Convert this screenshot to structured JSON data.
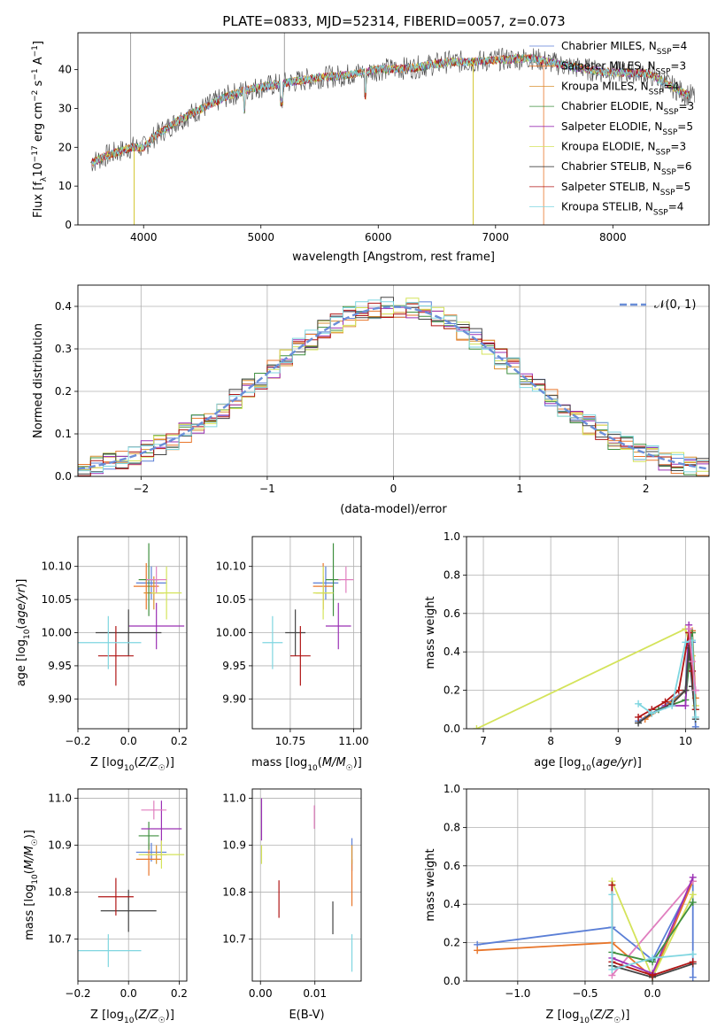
{
  "figure_title": "PLATE=0833, MJD=52314, FIBERID=0057, z=0.073",
  "colors": {
    "Chabrier MILES": "#5b7fd6",
    "Salpeter MILES": "#e8762b",
    "Kroupa MILES": "#d99030",
    "Chabrier ELODIE": "#3f8f3f",
    "Salpeter ELODIE": "#9b30b5",
    "Kroupa ELODIE": "#d4e35a",
    "Chabrier STELIB": "#444444",
    "Salpeter STELIB": "#b01515",
    "Kroupa STELIB": "#7fd6e0",
    "pink": "#e07fbf"
  },
  "legend": [
    {
      "model": "Chabrier MILES",
      "n": "4"
    },
    {
      "model": "Salpeter MILES",
      "n": "3"
    },
    {
      "model": "Kroupa MILES",
      "n": "4"
    },
    {
      "model": "Chabrier ELODIE",
      "n": "3"
    },
    {
      "model": "Salpeter ELODIE",
      "n": "5"
    },
    {
      "model": "Kroupa ELODIE",
      "n": "3"
    },
    {
      "model": "Chabrier STELIB",
      "n": "6"
    },
    {
      "model": "Salpeter STELIB",
      "n": "5"
    },
    {
      "model": "Kroupa STELIB",
      "n": "4"
    }
  ],
  "normal_legend": "𝒩(0, 1)",
  "chart_data": [
    {
      "id": "spectrum",
      "type": "line",
      "xlabel": "wavelength [Angstrom, rest frame]",
      "ylabel": "Flux [f_λ 10^-17 erg cm^-2 s^-1 A^-1]",
      "xlim": [
        3440,
        8820
      ],
      "ylim": [
        0,
        49.5
      ],
      "xticks": [
        4000,
        5000,
        6000,
        7000,
        8000
      ],
      "yticks": [
        0,
        10,
        20,
        30,
        40
      ],
      "continuum": [
        [
          3550,
          16
        ],
        [
          3700,
          18
        ],
        [
          3900,
          20
        ],
        [
          4000,
          20
        ],
        [
          4100,
          23
        ],
        [
          4300,
          27
        ],
        [
          4500,
          30
        ],
        [
          4700,
          33
        ],
        [
          4900,
          35
        ],
        [
          5100,
          36
        ],
        [
          5300,
          37
        ],
        [
          5500,
          38
        ],
        [
          5700,
          38.5
        ],
        [
          6000,
          40
        ],
        [
          6300,
          40.5
        ],
        [
          6600,
          42
        ],
        [
          6800,
          42
        ],
        [
          7000,
          42.5
        ],
        [
          7300,
          43
        ],
        [
          7600,
          41
        ],
        [
          7900,
          39.5
        ],
        [
          8300,
          39
        ],
        [
          8600,
          34
        ],
        [
          8700,
          33
        ]
      ]
    },
    {
      "id": "residuals",
      "type": "step",
      "xlabel": "(data-model)/error",
      "ylabel": "Normed distribution",
      "xlim": [
        -2.5,
        2.5
      ],
      "ylim": [
        0,
        0.45
      ],
      "xticks": [
        -2,
        -1,
        0,
        1,
        2
      ],
      "yticks": [
        0.0,
        0.1,
        0.2,
        0.3,
        0.4
      ],
      "bin_width": 0.1,
      "reference": "normal(0,1)"
    },
    {
      "id": "age-vs-Z",
      "type": "errorbar",
      "xlabel": "Z [log10(Z/Z☉)]",
      "ylabel": "age [log10(age/yr)]",
      "xlim": [
        -0.2,
        0.23
      ],
      "ylim": [
        9.855,
        10.145
      ],
      "xticks": [
        -0.2,
        0.0,
        0.2
      ],
      "yticks": [
        9.9,
        9.95,
        10.0,
        10.05,
        10.1
      ],
      "points": [
        {
          "c": "Chabrier MILES",
          "x": 0.09,
          "xerr": 0.06,
          "y": 10.075,
          "yerr": 0.025
        },
        {
          "c": "Salpeter MILES",
          "x": 0.07,
          "xerr": 0.05,
          "y": 10.07,
          "yerr": 0.035
        },
        {
          "c": "Kroupa MILES",
          "x": 0.1,
          "xerr": 0.04,
          "y": 10.06,
          "yerr": 0.025
        },
        {
          "c": "Chabrier ELODIE",
          "x": 0.08,
          "xerr": 0.04,
          "y": 10.08,
          "yerr": 0.055
        },
        {
          "c": "Salpeter ELODIE",
          "x": 0.11,
          "xerr": 0.11,
          "y": 10.01,
          "yerr": 0.035
        },
        {
          "c": "Kroupa ELODIE",
          "x": 0.15,
          "xerr": 0.06,
          "y": 10.06,
          "yerr": 0.04
        },
        {
          "c": "Chabrier STELIB",
          "x": 0.0,
          "xerr": 0.13,
          "y": 10.0,
          "yerr": 0.035
        },
        {
          "c": "Salpeter STELIB",
          "x": -0.05,
          "xerr": 0.07,
          "y": 9.965,
          "yerr": 0.045
        },
        {
          "c": "Kroupa STELIB",
          "x": -0.08,
          "xerr": 0.13,
          "y": 9.985,
          "yerr": 0.04
        },
        {
          "c": "pink",
          "x": 0.11,
          "xerr": 0.04,
          "y": 10.08,
          "yerr": 0.02
        }
      ]
    },
    {
      "id": "age-vs-mass",
      "type": "errorbar",
      "xlabel": "mass [log10(M/M☉)]",
      "ylabel": "",
      "xlim": [
        10.6,
        11.03
      ],
      "ylim": [
        9.855,
        10.145
      ],
      "xticks": [
        10.75,
        11.0
      ],
      "yticks": [
        9.9,
        9.95,
        10.0,
        10.05,
        10.1
      ],
      "points": [
        {
          "c": "Chabrier MILES",
          "x": 10.89,
          "xerr": 0.05,
          "y": 10.075,
          "yerr": 0.025
        },
        {
          "c": "Salpeter MILES",
          "x": 10.88,
          "xerr": 0.04,
          "y": 10.07,
          "yerr": 0.035
        },
        {
          "c": "Kroupa MILES",
          "x": 10.88,
          "xerr": 0.03,
          "y": 10.06,
          "yerr": 0.025
        },
        {
          "c": "Chabrier ELODIE",
          "x": 10.92,
          "xerr": 0.03,
          "y": 10.08,
          "yerr": 0.055
        },
        {
          "c": "Salpeter ELODIE",
          "x": 10.94,
          "xerr": 0.05,
          "y": 10.01,
          "yerr": 0.035
        },
        {
          "c": "Kroupa ELODIE",
          "x": 10.88,
          "xerr": 0.04,
          "y": 10.06,
          "yerr": 0.04
        },
        {
          "c": "Chabrier STELIB",
          "x": 10.77,
          "xerr": 0.04,
          "y": 10.0,
          "yerr": 0.035
        },
        {
          "c": "Salpeter STELIB",
          "x": 10.79,
          "xerr": 0.04,
          "y": 9.965,
          "yerr": 0.045
        },
        {
          "c": "Kroupa STELIB",
          "x": 10.68,
          "xerr": 0.04,
          "y": 9.985,
          "yerr": 0.04
        },
        {
          "c": "pink",
          "x": 10.97,
          "xerr": 0.03,
          "y": 10.08,
          "yerr": 0.02
        }
      ]
    },
    {
      "id": "weight-vs-age",
      "type": "line",
      "xlabel": "age [log10(age/yr)]",
      "ylabel": "mass weight",
      "xlim": [
        6.75,
        10.35
      ],
      "ylim": [
        0,
        1.0
      ],
      "xticks": [
        7,
        8,
        9,
        10
      ],
      "yticks": [
        0.0,
        0.2,
        0.4,
        0.6,
        0.8,
        1.0
      ],
      "series": [
        {
          "c": "Kroupa ELODIE",
          "x": [
            6.9,
            10.0,
            10.1,
            10.15
          ],
          "y": [
            0.0,
            0.52,
            0.38,
            0.12
          ]
        },
        {
          "c": "Chabrier MILES",
          "x": [
            9.3,
            9.6,
            10.0,
            10.05,
            10.1,
            10.15
          ],
          "y": [
            0.04,
            0.1,
            0.2,
            0.52,
            0.45,
            0.01
          ]
        },
        {
          "c": "Salpeter MILES",
          "x": [
            9.4,
            9.8,
            10.0,
            10.1,
            10.15
          ],
          "y": [
            0.05,
            0.14,
            0.2,
            0.51,
            0.16
          ]
        },
        {
          "c": "Chabrier ELODIE",
          "x": [
            9.6,
            10.0,
            10.1,
            10.15
          ],
          "y": [
            0.1,
            0.15,
            0.5,
            0.1
          ]
        },
        {
          "c": "Salpeter ELODIE",
          "x": [
            9.7,
            10.0,
            10.05,
            10.1,
            10.15
          ],
          "y": [
            0.12,
            0.12,
            0.54,
            0.3,
            0.2
          ]
        },
        {
          "c": "Chabrier STELIB",
          "x": [
            9.3,
            9.5,
            9.8,
            10.0,
            10.05,
            10.1,
            10.15
          ],
          "y": [
            0.03,
            0.08,
            0.13,
            0.2,
            0.42,
            0.22,
            0.05
          ]
        },
        {
          "c": "Salpeter STELIB",
          "x": [
            9.3,
            9.5,
            9.7,
            9.9,
            10.05,
            10.1,
            10.15
          ],
          "y": [
            0.06,
            0.1,
            0.14,
            0.2,
            0.5,
            0.3,
            0.1
          ]
        },
        {
          "c": "Kroupa STELIB",
          "x": [
            9.3,
            9.5,
            9.8,
            10.0,
            10.1,
            10.15
          ],
          "y": [
            0.13,
            0.08,
            0.12,
            0.45,
            0.46,
            0.06
          ]
        },
        {
          "c": "pink",
          "x": [
            10.05,
            10.1,
            10.15
          ],
          "y": [
            0.52,
            0.35,
            0.2
          ]
        }
      ]
    },
    {
      "id": "mass-vs-Z",
      "type": "errorbar",
      "xlabel": "Z [log10(Z/Z☉)]",
      "ylabel": "mass [log10(M/M☉)]",
      "xlim": [
        -0.2,
        0.23
      ],
      "ylim": [
        10.61,
        11.02
      ],
      "xticks": [
        -0.2,
        0.0,
        0.2
      ],
      "yticks": [
        10.7,
        10.8,
        10.9,
        11.0
      ],
      "points": [
        {
          "c": "Chabrier MILES",
          "x": 0.09,
          "xerr": 0.06,
          "y": 10.885,
          "yerr": 0.02
        },
        {
          "c": "Salpeter MILES",
          "x": 0.08,
          "xerr": 0.05,
          "y": 10.87,
          "yerr": 0.035
        },
        {
          "c": "Kroupa MILES",
          "x": 0.11,
          "xerr": 0.04,
          "y": 10.88,
          "yerr": 0.02
        },
        {
          "c": "Chabrier ELODIE",
          "x": 0.08,
          "xerr": 0.04,
          "y": 10.92,
          "yerr": 0.03
        },
        {
          "c": "Salpeter ELODIE",
          "x": 0.13,
          "xerr": 0.08,
          "y": 10.935,
          "yerr": 0.06
        },
        {
          "c": "Kroupa ELODIE",
          "x": 0.13,
          "xerr": 0.09,
          "y": 10.88,
          "yerr": 0.03
        },
        {
          "c": "Chabrier STELIB",
          "x": 0.0,
          "xerr": 0.11,
          "y": 10.76,
          "yerr": 0.045
        },
        {
          "c": "Salpeter STELIB",
          "x": -0.05,
          "xerr": 0.07,
          "y": 10.79,
          "yerr": 0.04
        },
        {
          "c": "Kroupa STELIB",
          "x": -0.08,
          "xerr": 0.13,
          "y": 10.675,
          "yerr": 0.035
        },
        {
          "c": "pink",
          "x": 0.1,
          "xerr": 0.05,
          "y": 10.975,
          "yerr": 0.02
        }
      ]
    },
    {
      "id": "mass-vs-ebv",
      "type": "errorbar",
      "xlabel": "E(B-V)",
      "ylabel": "",
      "xlim": [
        -0.0015,
        0.0185
      ],
      "ylim": [
        10.61,
        11.02
      ],
      "xticks": [
        0.0,
        0.01
      ],
      "yticks": [
        10.7,
        10.8,
        10.9,
        11.0
      ],
      "points": [
        {
          "c": "Chabrier MILES",
          "x": 0.0168,
          "y": 10.88,
          "yerr": 0.035
        },
        {
          "c": "Salpeter MILES",
          "x": 0.0168,
          "y": 10.82,
          "yerr": 0.05
        },
        {
          "c": "Kroupa MILES",
          "x": 0.0168,
          "y": 10.88,
          "yerr": 0.02
        },
        {
          "c": "Salpeter ELODIE",
          "x": 0.0002,
          "y": 10.955,
          "yerr": 0.045
        },
        {
          "c": "Kroupa ELODIE",
          "x": 0.0002,
          "y": 10.88,
          "yerr": 0.02
        },
        {
          "c": "Chabrier STELIB",
          "x": 0.0133,
          "y": 10.745,
          "yerr": 0.035
        },
        {
          "c": "Salpeter STELIB",
          "x": 0.0034,
          "y": 10.785,
          "yerr": 0.04
        },
        {
          "c": "Kroupa STELIB",
          "x": 0.0168,
          "y": 10.67,
          "yerr": 0.04
        },
        {
          "c": "pink",
          "x": 0.0099,
          "y": 10.96,
          "yerr": 0.025
        }
      ]
    },
    {
      "id": "weight-vs-Z",
      "type": "line",
      "xlabel": "Z [log10(Z/Z☉)]",
      "ylabel": "mass weight",
      "xlim": [
        -1.38,
        0.42
      ],
      "ylim": [
        0,
        1.0
      ],
      "xticks": [
        -1.0,
        -0.5,
        0.0
      ],
      "yticks": [
        0.0,
        0.2,
        0.4,
        0.6,
        0.8,
        1.0
      ],
      "series": [
        {
          "c": "Chabrier MILES",
          "x": [
            -1.3,
            -0.3,
            0.0,
            0.3,
            0.3
          ],
          "y": [
            0.19,
            0.28,
            0.11,
            0.52,
            0.02
          ]
        },
        {
          "c": "Salpeter MILES",
          "x": [
            -1.3,
            -0.3,
            0.0,
            0.3
          ],
          "y": [
            0.16,
            0.2,
            0.02,
            0.52
          ]
        },
        {
          "c": "pink",
          "x": [
            -0.3,
            0.3
          ],
          "y": [
            0.03,
            0.52
          ]
        },
        {
          "c": "Kroupa ELODIE",
          "x": [
            -0.3,
            0.0,
            0.3
          ],
          "y": [
            0.52,
            0.02,
            0.45
          ]
        },
        {
          "c": "Salpeter ELODIE",
          "x": [
            -0.3,
            0.0,
            0.3
          ],
          "y": [
            0.12,
            0.04,
            0.54
          ]
        },
        {
          "c": "Chabrier ELODIE",
          "x": [
            -0.3,
            0.0,
            0.3
          ],
          "y": [
            0.15,
            0.1,
            0.41
          ]
        },
        {
          "c": "Chabrier STELIB",
          "x": [
            -0.3,
            0.0,
            0.3
          ],
          "y": [
            0.08,
            0.02,
            0.09
          ]
        },
        {
          "c": "Salpeter STELIB",
          "x": [
            -0.3,
            -0.3,
            0.0,
            0.3
          ],
          "y": [
            0.5,
            0.1,
            0.03,
            0.1
          ]
        },
        {
          "c": "Kroupa STELIB",
          "x": [
            -0.3,
            -0.3,
            0.0,
            0.3
          ],
          "y": [
            0.45,
            0.06,
            0.12,
            0.14
          ]
        }
      ]
    }
  ]
}
